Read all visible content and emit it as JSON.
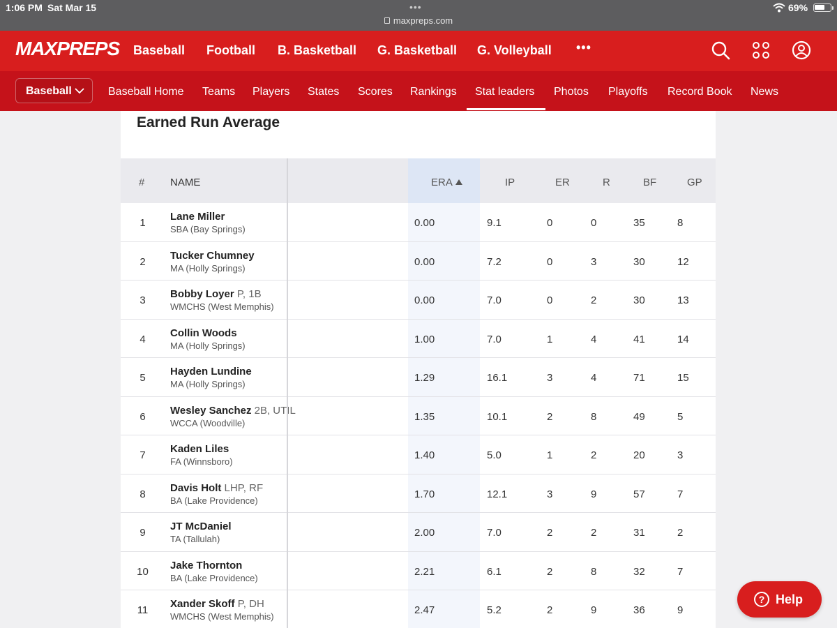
{
  "status_bar": {
    "time": "1:06 PM",
    "date": "Sat Mar 15",
    "url": "maxpreps.com",
    "battery_pct": "69%",
    "battery_level": 0.69
  },
  "brand": {
    "logo": "MAXPREPS",
    "color": "#d81e1e"
  },
  "top_nav": {
    "items": [
      "Baseball",
      "Football",
      "B. Basketball",
      "G. Basketball",
      "G. Volleyball"
    ],
    "more": "•••",
    "icons": [
      "search-icon",
      "apps-grid-icon",
      "account-icon"
    ]
  },
  "sub_nav": {
    "sport": "Baseball",
    "items": [
      "Baseball Home",
      "Teams",
      "Players",
      "States",
      "Scores",
      "Rankings",
      "Stat leaders",
      "Photos",
      "Playoffs",
      "Record Book",
      "News"
    ],
    "active": "Stat leaders"
  },
  "table": {
    "title": "Earned Run Average",
    "headers": {
      "rank": "#",
      "name": "NAME",
      "era": "ERA",
      "ip": "IP",
      "er": "ER",
      "r": "R",
      "bf": "BF",
      "gp": "GP"
    },
    "sorted_by": "ERA",
    "rows": [
      {
        "rank": "1",
        "name": "Lane Miller",
        "pos": "",
        "school": "SBA (Bay Springs)",
        "era": "0.00",
        "ip": "9.1",
        "er": "0",
        "r": "0",
        "bf": "35",
        "gp": "8"
      },
      {
        "rank": "2",
        "name": "Tucker Chumney",
        "pos": "",
        "school": "MA (Holly Springs)",
        "era": "0.00",
        "ip": "7.2",
        "er": "0",
        "r": "3",
        "bf": "30",
        "gp": "12"
      },
      {
        "rank": "3",
        "name": "Bobby Loyer",
        "pos": "P, 1B",
        "school": "WMCHS (West Memphis)",
        "era": "0.00",
        "ip": "7.0",
        "er": "0",
        "r": "2",
        "bf": "30",
        "gp": "13"
      },
      {
        "rank": "4",
        "name": "Collin Woods",
        "pos": "",
        "school": "MA (Holly Springs)",
        "era": "1.00",
        "ip": "7.0",
        "er": "1",
        "r": "4",
        "bf": "41",
        "gp": "14"
      },
      {
        "rank": "5",
        "name": "Hayden Lundine",
        "pos": "",
        "school": "MA (Holly Springs)",
        "era": "1.29",
        "ip": "16.1",
        "er": "3",
        "r": "4",
        "bf": "71",
        "gp": "15"
      },
      {
        "rank": "6",
        "name": "Wesley Sanchez",
        "pos": "2B, UTIL",
        "school": "WCCA (Woodville)",
        "era": "1.35",
        "ip": "10.1",
        "er": "2",
        "r": "8",
        "bf": "49",
        "gp": "5"
      },
      {
        "rank": "7",
        "name": "Kaden Liles",
        "pos": "",
        "school": "FA (Winnsboro)",
        "era": "1.40",
        "ip": "5.0",
        "er": "1",
        "r": "2",
        "bf": "20",
        "gp": "3"
      },
      {
        "rank": "8",
        "name": "Davis Holt",
        "pos": "LHP, RF",
        "school": "BA (Lake Providence)",
        "era": "1.70",
        "ip": "12.1",
        "er": "3",
        "r": "9",
        "bf": "57",
        "gp": "7"
      },
      {
        "rank": "9",
        "name": "JT McDaniel",
        "pos": "",
        "school": "TA (Tallulah)",
        "era": "2.00",
        "ip": "7.0",
        "er": "2",
        "r": "2",
        "bf": "31",
        "gp": "2"
      },
      {
        "rank": "10",
        "name": "Jake Thornton",
        "pos": "",
        "school": "BA (Lake Providence)",
        "era": "2.21",
        "ip": "6.1",
        "er": "2",
        "r": "8",
        "bf": "32",
        "gp": "7"
      },
      {
        "rank": "11",
        "name": "Xander Skoff",
        "pos": "P, DH",
        "school": "WMCHS (West Memphis)",
        "era": "2.47",
        "ip": "5.2",
        "er": "2",
        "r": "9",
        "bf": "36",
        "gp": "9"
      }
    ]
  },
  "help": {
    "label": "Help",
    "icon": "question-icon"
  }
}
